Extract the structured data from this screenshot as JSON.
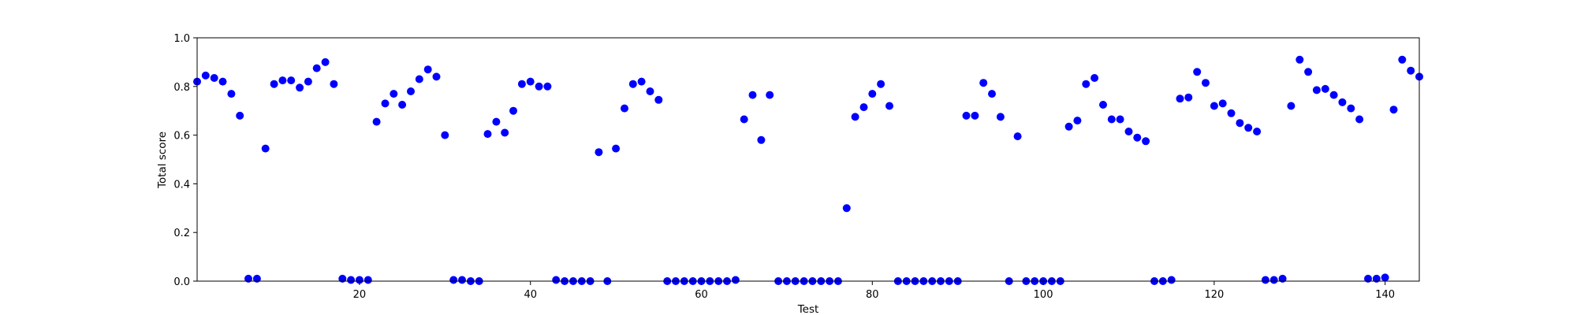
{
  "chart_data": {
    "type": "scatter",
    "title": "",
    "xlabel": "Test",
    "ylabel": "Total score",
    "xlim": [
      1,
      144
    ],
    "ylim": [
      0.0,
      1.0
    ],
    "x_ticks": [
      20,
      40,
      60,
      80,
      100,
      120,
      140
    ],
    "y_ticks": [
      0.0,
      0.2,
      0.4,
      0.6,
      0.8,
      1.0
    ],
    "x_tick_labels": [
      "20",
      "40",
      "60",
      "80",
      "100",
      "120",
      "140"
    ],
    "y_tick_labels": [
      "0.0",
      "0.2",
      "0.4",
      "0.6",
      "0.8",
      "1.0"
    ],
    "grid": false,
    "legend": "none",
    "marker_color": "#0000ff",
    "x": [
      1,
      2,
      3,
      4,
      5,
      6,
      7,
      8,
      9,
      10,
      11,
      12,
      13,
      14,
      15,
      16,
      17,
      18,
      19,
      20,
      21,
      22,
      23,
      24,
      25,
      26,
      27,
      28,
      29,
      30,
      31,
      32,
      33,
      34,
      35,
      36,
      37,
      38,
      39,
      40,
      41,
      42,
      43,
      44,
      45,
      46,
      47,
      48,
      49,
      50,
      51,
      52,
      53,
      54,
      55,
      56,
      57,
      58,
      59,
      60,
      61,
      62,
      63,
      64,
      65,
      66,
      67,
      68,
      69,
      70,
      71,
      72,
      73,
      74,
      75,
      76,
      77,
      78,
      79,
      80,
      81,
      82,
      83,
      84,
      85,
      86,
      87,
      88,
      89,
      90,
      91,
      92,
      93,
      94,
      95,
      96,
      97,
      98,
      99,
      100,
      101,
      102,
      103,
      104,
      105,
      106,
      107,
      108,
      109,
      110,
      111,
      112,
      113,
      114,
      115,
      116,
      117,
      118,
      119,
      120,
      121,
      122,
      123,
      124,
      125,
      126,
      127,
      128,
      129,
      130,
      131,
      132,
      133,
      134,
      135,
      136,
      137,
      138,
      139,
      140,
      141,
      142,
      143,
      144
    ],
    "y": [
      0.82,
      0.845,
      0.835,
      0.82,
      0.77,
      0.68,
      0.01,
      0.01,
      0.545,
      0.81,
      0.825,
      0.825,
      0.795,
      0.82,
      0.875,
      0.9,
      0.81,
      0.01,
      0.005,
      0.005,
      0.005,
      0.655,
      0.73,
      0.77,
      0.725,
      0.78,
      0.83,
      0.87,
      0.84,
      0.6,
      0.005,
      0.005,
      0.0,
      0.0,
      0.605,
      0.655,
      0.61,
      0.7,
      0.81,
      0.82,
      0.8,
      0.8,
      0.005,
      0.0,
      0.0,
      0.0,
      0.0,
      0.53,
      0.0,
      0.545,
      0.71,
      0.81,
      0.82,
      0.78,
      0.745,
      0.0,
      0.0,
      0.0,
      0.0,
      0.0,
      0.0,
      0.0,
      0.0,
      0.005,
      0.665,
      0.765,
      0.58,
      0.765,
      0.0,
      0.0,
      0.0,
      0.0,
      0.0,
      0.0,
      0.0,
      0.0,
      0.3,
      0.675,
      0.715,
      0.77,
      0.81,
      0.72,
      0.0,
      0.0,
      0.0,
      0.0,
      0.0,
      0.0,
      0.0,
      0.0,
      0.68,
      0.68,
      0.815,
      0.77,
      0.675,
      0.0,
      0.595,
      0.0,
      0.0,
      0.0,
      0.0,
      0.0,
      0.635,
      0.66,
      0.81,
      0.835,
      0.725,
      0.665,
      0.665,
      0.615,
      0.59,
      0.575,
      0.0,
      0.0,
      0.005,
      0.75,
      0.755,
      0.86,
      0.815,
      0.72,
      0.73,
      0.69,
      0.65,
      0.63,
      0.615,
      0.005,
      0.005,
      0.01,
      0.72,
      0.91,
      0.86,
      0.785,
      0.79,
      0.765,
      0.735,
      0.71,
      0.665,
      0.01,
      0.01,
      0.015,
      0.705,
      0.91,
      0.865,
      0.84
    ]
  }
}
